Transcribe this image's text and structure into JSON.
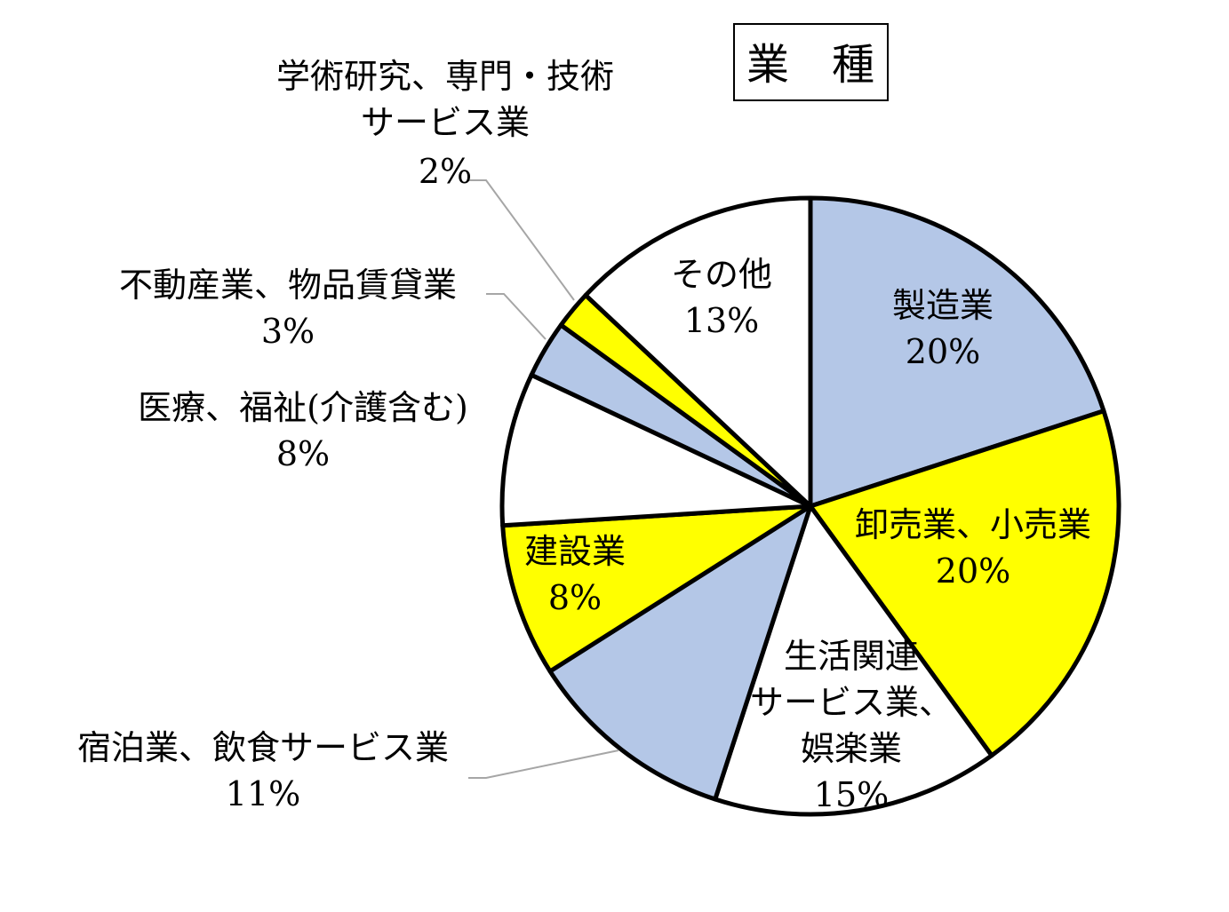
{
  "chart_data": {
    "type": "pie",
    "title": "業　種",
    "slices": [
      {
        "label": "製造業",
        "value": 20,
        "value_label": "20%",
        "color": "#b4c7e7"
      },
      {
        "label": "卸売業、小売業",
        "value": 20,
        "value_label": "20%",
        "color": "#ffff00"
      },
      {
        "label": "生活関連サービス業、娯楽業",
        "label_lines": [
          "生活関連",
          "サービス業、",
          "娯楽業"
        ],
        "value": 15,
        "value_label": "15%",
        "color": "#ffffff"
      },
      {
        "label": "宿泊業、飲食サービス業",
        "value": 11,
        "value_label": "11%",
        "color": "#b4c7e7"
      },
      {
        "label": "建設業",
        "value": 8,
        "value_label": "8%",
        "color": "#ffff00"
      },
      {
        "label": "医療、福祉(介護含む)",
        "value": 8,
        "value_label": "8%",
        "color": "#ffffff"
      },
      {
        "label": "不動産業、物品賃貸業",
        "value": 3,
        "value_label": "3%",
        "color": "#b4c7e7"
      },
      {
        "label": "学術研究、専門・技術サービス業",
        "label_lines": [
          "学術研究、専門・技術",
          "サービス業"
        ],
        "value": 2,
        "value_label": "2%",
        "color": "#ffff00"
      },
      {
        "label": "その他",
        "value": 13,
        "value_label": "13%",
        "color": "#ffffff"
      }
    ],
    "start_angle": "12 o'clock",
    "direction": "clockwise",
    "legend": "none"
  }
}
